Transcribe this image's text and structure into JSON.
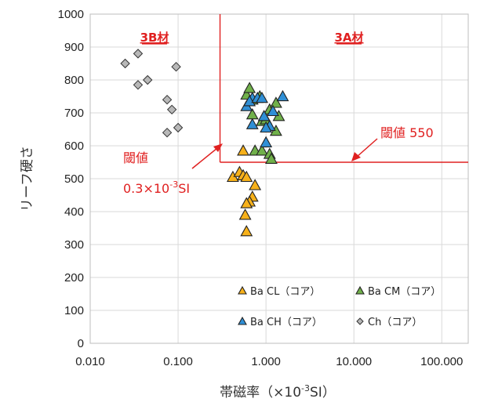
{
  "chart_data": {
    "type": "scatter",
    "xscale": "log",
    "xlim": [
      0.01,
      200
    ],
    "ylim": [
      0,
      1000
    ],
    "xlabel_prefix": "帯磁率（×10",
    "xlabel_sup": "-3",
    "xlabel_suffix": "SI）",
    "ylabel": "リーフ硬さ",
    "xticks": [
      "0.010",
      "0.100",
      "1.000",
      "10.000",
      "100.000"
    ],
    "xtick_values": [
      0.01,
      0.1,
      1,
      10,
      100
    ],
    "yticks": [
      "0",
      "100",
      "200",
      "300",
      "400",
      "500",
      "600",
      "700",
      "800",
      "900",
      "1000"
    ],
    "ytick_values": [
      0,
      100,
      200,
      300,
      400,
      500,
      600,
      700,
      800,
      900,
      1000
    ],
    "threshold_x": 0.3,
    "threshold_y": 550,
    "region_labels": [
      "3B材",
      "3A材"
    ],
    "annotations": {
      "left_line1": "閾値",
      "left_line2_prefix": "0.3×10",
      "left_line2_sup": "-3",
      "left_line2_suffix": "SI",
      "right": "閾値 550"
    },
    "series": [
      {
        "name": "Ba CL（コア）",
        "marker": "triangle",
        "color": "#f7b11a",
        "points": [
          [
            0.42,
            505
          ],
          [
            0.5,
            520
          ],
          [
            0.55,
            510
          ],
          [
            0.6,
            505
          ],
          [
            0.75,
            480
          ],
          [
            0.7,
            445
          ],
          [
            0.65,
            430
          ],
          [
            0.6,
            425
          ],
          [
            0.58,
            390
          ],
          [
            0.6,
            340
          ],
          [
            0.55,
            585
          ]
        ]
      },
      {
        "name": "Ba CM（コア）",
        "marker": "triangle",
        "color": "#70b04a",
        "points": [
          [
            0.6,
            755
          ],
          [
            0.65,
            775
          ],
          [
            0.7,
            740
          ],
          [
            0.85,
            750
          ],
          [
            0.7,
            695
          ],
          [
            0.9,
            675
          ],
          [
            1.0,
            680
          ],
          [
            1.1,
            710
          ],
          [
            1.3,
            730
          ],
          [
            1.4,
            690
          ],
          [
            1.3,
            645
          ],
          [
            0.75,
            585
          ],
          [
            0.9,
            585
          ],
          [
            1.1,
            575
          ],
          [
            1.15,
            560
          ]
        ]
      },
      {
        "name": "Ba CH（コア）",
        "marker": "triangle",
        "color": "#2f8fd6",
        "points": [
          [
            0.6,
            720
          ],
          [
            0.7,
            745
          ],
          [
            0.65,
            735
          ],
          [
            0.8,
            745
          ],
          [
            0.9,
            745
          ],
          [
            1.55,
            750
          ],
          [
            1.2,
            705
          ],
          [
            0.95,
            690
          ],
          [
            1.1,
            660
          ],
          [
            1.0,
            655
          ],
          [
            0.7,
            665
          ],
          [
            1.0,
            610
          ]
        ]
      },
      {
        "name": "Ch（コア）",
        "marker": "diamond",
        "color": "#b8b8b8",
        "points": [
          [
            0.025,
            850
          ],
          [
            0.035,
            880
          ],
          [
            0.045,
            800
          ],
          [
            0.035,
            785
          ],
          [
            0.095,
            840
          ],
          [
            0.075,
            740
          ],
          [
            0.085,
            710
          ],
          [
            0.1,
            655
          ],
          [
            0.075,
            640
          ]
        ]
      }
    ]
  }
}
